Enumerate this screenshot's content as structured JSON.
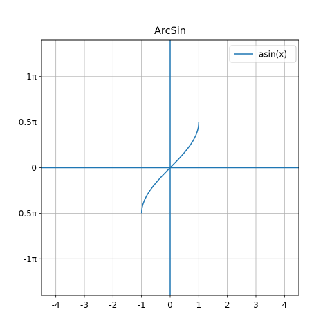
{
  "chart_data": {
    "type": "line",
    "title": "ArcSin",
    "xlabel": "",
    "ylabel": "",
    "xlim": [
      -4.5,
      4.5
    ],
    "ylim": [
      -1.4,
      1.4
    ],
    "y_unit_note": "y axis values in multiples of pi",
    "grid": true,
    "legend_position": "top-right",
    "x_ticks": [
      {
        "value": -4,
        "label": "-4"
      },
      {
        "value": -3,
        "label": "-3"
      },
      {
        "value": -2,
        "label": "-2"
      },
      {
        "value": -1,
        "label": "-1"
      },
      {
        "value": 0,
        "label": "0"
      },
      {
        "value": 1,
        "label": "1"
      },
      {
        "value": 2,
        "label": "2"
      },
      {
        "value": 3,
        "label": "3"
      },
      {
        "value": 4,
        "label": "4"
      }
    ],
    "y_ticks": [
      {
        "value": -1,
        "label": "-1π"
      },
      {
        "value": -0.5,
        "label": "-0.5π"
      },
      {
        "value": 0,
        "label": "0"
      },
      {
        "value": 0.5,
        "label": "0.5π"
      },
      {
        "value": 1,
        "label": "1π"
      }
    ],
    "series": [
      {
        "name": "asin(x)",
        "color": "#1f77b4",
        "x": [
          -1,
          -0.995,
          -0.98,
          -0.95,
          -0.9,
          -0.8,
          -0.7,
          -0.6,
          -0.5,
          -0.4,
          -0.3,
          -0.2,
          -0.1,
          0,
          0.1,
          0.2,
          0.3,
          0.4,
          0.5,
          0.6,
          0.7,
          0.8,
          0.9,
          0.95,
          0.98,
          0.995,
          1
        ],
        "y": [
          -0.5,
          -0.4682,
          -0.4362,
          -0.399,
          -0.3564,
          -0.2952,
          -0.2468,
          -0.2048,
          -0.1667,
          -0.131,
          -0.097,
          -0.0641,
          -0.0319,
          0,
          0.0319,
          0.0641,
          0.097,
          0.131,
          0.1667,
          0.2048,
          0.2468,
          0.2952,
          0.3564,
          0.399,
          0.4362,
          0.4682,
          0.5
        ]
      }
    ],
    "axis_lines": {
      "color": "#1f77b4"
    }
  }
}
